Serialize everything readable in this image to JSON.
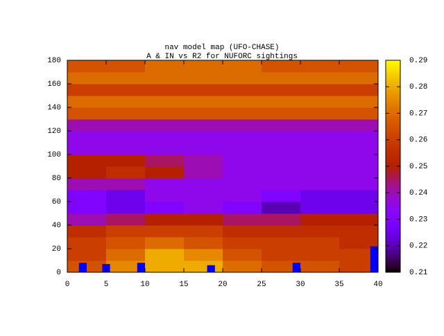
{
  "chart_data": {
    "type": "heatmap",
    "title": "nav model map (UFO-CHASE)",
    "subtitle": "A & IN vs R2 for NUFORC sightings",
    "xbins": [
      0,
      5,
      10,
      15,
      20,
      25,
      30,
      35,
      40
    ],
    "ybins": [
      0,
      10,
      20,
      30,
      40,
      50,
      60,
      70,
      80,
      90,
      100,
      110,
      120,
      130,
      140,
      150,
      160,
      170,
      180
    ],
    "z": [
      [
        0.265,
        0.275,
        0.28,
        0.28,
        0.27,
        0.265,
        0.265,
        0.26
      ],
      [
        0.26,
        0.27,
        0.28,
        0.275,
        0.265,
        0.26,
        0.26,
        0.26
      ],
      [
        0.26,
        0.265,
        0.27,
        0.265,
        0.26,
        0.26,
        0.26,
        0.255
      ],
      [
        0.255,
        0.26,
        0.26,
        0.26,
        0.255,
        0.255,
        0.255,
        0.255
      ],
      [
        0.24,
        0.245,
        0.25,
        0.25,
        0.245,
        0.245,
        0.25,
        0.25
      ],
      [
        0.23,
        0.225,
        0.23,
        0.235,
        0.23,
        0.22,
        0.225,
        0.225
      ],
      [
        0.23,
        0.225,
        0.235,
        0.235,
        0.235,
        0.23,
        0.225,
        0.225
      ],
      [
        0.24,
        0.24,
        0.235,
        0.235,
        0.235,
        0.235,
        0.235,
        0.235
      ],
      [
        0.25,
        0.255,
        0.25,
        0.24,
        0.235,
        0.235,
        0.235,
        0.235
      ],
      [
        0.25,
        0.25,
        0.245,
        0.24,
        0.235,
        0.235,
        0.235,
        0.235
      ],
      [
        0.235,
        0.235,
        0.235,
        0.235,
        0.235,
        0.235,
        0.235,
        0.235
      ],
      [
        0.235,
        0.235,
        0.235,
        0.235,
        0.235,
        0.235,
        0.235,
        0.235
      ],
      [
        0.24,
        0.24,
        0.24,
        0.24,
        0.24,
        0.24,
        0.24,
        0.24
      ],
      [
        0.265,
        0.265,
        0.265,
        0.265,
        0.265,
        0.265,
        0.265,
        0.265
      ],
      [
        0.27,
        0.27,
        0.27,
        0.27,
        0.27,
        0.27,
        0.27,
        0.27
      ],
      [
        0.26,
        0.26,
        0.26,
        0.26,
        0.26,
        0.26,
        0.26,
        0.26
      ],
      [
        0.27,
        0.27,
        0.27,
        0.27,
        0.27,
        0.27,
        0.27,
        0.27
      ],
      [
        0.265,
        0.265,
        0.27,
        0.27,
        0.27,
        0.265,
        0.265,
        0.265
      ]
    ],
    "bars": {
      "color": "#0000ff",
      "x": [
        2,
        5,
        9.5,
        18.5,
        29.5,
        39.5
      ],
      "values": [
        8,
        7,
        8,
        6,
        8,
        22
      ]
    },
    "xlim": [
      0,
      40
    ],
    "xticks": [
      0,
      5,
      10,
      15,
      20,
      25,
      30,
      35,
      40
    ],
    "ylim": [
      0,
      180
    ],
    "yticks": [
      0,
      20,
      40,
      60,
      80,
      100,
      120,
      140,
      160,
      180
    ],
    "clim": [
      0.21,
      0.29
    ],
    "cticks": [
      0.21,
      0.22,
      0.23,
      0.24,
      0.25,
      0.26,
      0.27,
      0.28,
      0.29
    ]
  }
}
